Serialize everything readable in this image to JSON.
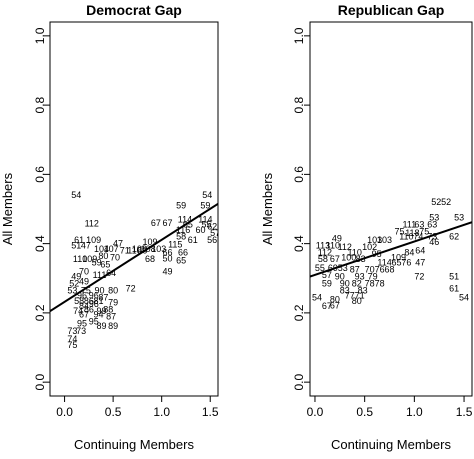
{
  "chart_data": [
    {
      "type": "scatter",
      "title": "Democrat Gap",
      "xlabel": "Continuing Members",
      "ylabel": "All Members",
      "xlim": [
        -0.15,
        1.58
      ],
      "ylim": [
        -0.04,
        1.04
      ],
      "xticks": [
        "0.0",
        "0.5",
        "1.0",
        "1.5"
      ],
      "yticks": [
        "0.0",
        "0.2",
        "0.4",
        "0.6",
        "0.8",
        "1.0"
      ],
      "fit_line": {
        "x": [
          -0.15,
          1.58
        ],
        "y": [
          0.205,
          0.515
        ]
      },
      "points": [
        {
          "x": 0.12,
          "y": 0.54,
          "label": "54"
        },
        {
          "x": 0.28,
          "y": 0.458,
          "label": "112"
        },
        {
          "x": 0.15,
          "y": 0.41,
          "label": "61"
        },
        {
          "x": 0.3,
          "y": 0.41,
          "label": "109"
        },
        {
          "x": 0.12,
          "y": 0.395,
          "label": "51"
        },
        {
          "x": 0.22,
          "y": 0.395,
          "label": "47"
        },
        {
          "x": 0.55,
          "y": 0.4,
          "label": "47"
        },
        {
          "x": 0.38,
          "y": 0.385,
          "label": "104"
        },
        {
          "x": 0.48,
          "y": 0.385,
          "label": "107"
        },
        {
          "x": 0.62,
          "y": 0.38,
          "label": "71"
        },
        {
          "x": 0.72,
          "y": 0.38,
          "label": "110"
        },
        {
          "x": 0.16,
          "y": 0.355,
          "label": "110"
        },
        {
          "x": 0.26,
          "y": 0.355,
          "label": "109"
        },
        {
          "x": 0.4,
          "y": 0.365,
          "label": "80"
        },
        {
          "x": 0.52,
          "y": 0.36,
          "label": "70"
        },
        {
          "x": 0.33,
          "y": 0.345,
          "label": "59"
        },
        {
          "x": 0.42,
          "y": 0.34,
          "label": "65"
        },
        {
          "x": 0.2,
          "y": 0.32,
          "label": "70"
        },
        {
          "x": 0.12,
          "y": 0.305,
          "label": "49"
        },
        {
          "x": 0.36,
          "y": 0.31,
          "label": "111"
        },
        {
          "x": 0.48,
          "y": 0.315,
          "label": "64"
        },
        {
          "x": 0.2,
          "y": 0.29,
          "label": "49"
        },
        {
          "x": 0.1,
          "y": 0.285,
          "label": "52"
        },
        {
          "x": 0.08,
          "y": 0.265,
          "label": "53"
        },
        {
          "x": 0.22,
          "y": 0.265,
          "label": "75"
        },
        {
          "x": 0.36,
          "y": 0.265,
          "label": "90"
        },
        {
          "x": 0.5,
          "y": 0.265,
          "label": "80"
        },
        {
          "x": 0.68,
          "y": 0.27,
          "label": "72"
        },
        {
          "x": 0.18,
          "y": 0.25,
          "label": "96"
        },
        {
          "x": 0.3,
          "y": 0.25,
          "label": "96"
        },
        {
          "x": 0.4,
          "y": 0.245,
          "label": "87"
        },
        {
          "x": 0.15,
          "y": 0.235,
          "label": "58"
        },
        {
          "x": 0.25,
          "y": 0.235,
          "label": "86"
        },
        {
          "x": 0.35,
          "y": 0.235,
          "label": "81"
        },
        {
          "x": 0.2,
          "y": 0.22,
          "label": "84"
        },
        {
          "x": 0.3,
          "y": 0.225,
          "label": "96"
        },
        {
          "x": 0.5,
          "y": 0.23,
          "label": "79"
        },
        {
          "x": 0.14,
          "y": 0.205,
          "label": "74"
        },
        {
          "x": 0.25,
          "y": 0.21,
          "label": "86"
        },
        {
          "x": 0.38,
          "y": 0.205,
          "label": "99"
        },
        {
          "x": 0.45,
          "y": 0.21,
          "label": "88"
        },
        {
          "x": 0.2,
          "y": 0.195,
          "label": "67"
        },
        {
          "x": 0.35,
          "y": 0.195,
          "label": "94"
        },
        {
          "x": 0.48,
          "y": 0.19,
          "label": "87"
        },
        {
          "x": 0.18,
          "y": 0.17,
          "label": "95"
        },
        {
          "x": 0.3,
          "y": 0.175,
          "label": "95"
        },
        {
          "x": 0.38,
          "y": 0.162,
          "label": "89"
        },
        {
          "x": 0.5,
          "y": 0.162,
          "label": "89"
        },
        {
          "x": 0.08,
          "y": 0.148,
          "label": "73"
        },
        {
          "x": 0.17,
          "y": 0.148,
          "label": "73"
        },
        {
          "x": 0.08,
          "y": 0.125,
          "label": "74"
        },
        {
          "x": 0.08,
          "y": 0.107,
          "label": "75"
        },
        {
          "x": 0.94,
          "y": 0.46,
          "label": "67"
        },
        {
          "x": 1.06,
          "y": 0.46,
          "label": "67"
        },
        {
          "x": 1.2,
          "y": 0.51,
          "label": "59"
        },
        {
          "x": 1.47,
          "y": 0.54,
          "label": "54"
        },
        {
          "x": 1.45,
          "y": 0.51,
          "label": "59"
        },
        {
          "x": 1.24,
          "y": 0.47,
          "label": "114"
        },
        {
          "x": 1.45,
          "y": 0.47,
          "label": "114"
        },
        {
          "x": 1.27,
          "y": 0.455,
          "label": "65"
        },
        {
          "x": 1.46,
          "y": 0.455,
          "label": "55"
        },
        {
          "x": 1.52,
          "y": 0.45,
          "label": "62"
        },
        {
          "x": 1.22,
          "y": 0.44,
          "label": "116"
        },
        {
          "x": 1.4,
          "y": 0.44,
          "label": "60"
        },
        {
          "x": 1.2,
          "y": 0.42,
          "label": "58"
        },
        {
          "x": 1.55,
          "y": 0.43,
          "label": "57"
        },
        {
          "x": 0.88,
          "y": 0.405,
          "label": "109"
        },
        {
          "x": 1.32,
          "y": 0.41,
          "label": "61"
        },
        {
          "x": 1.14,
          "y": 0.398,
          "label": "115"
        },
        {
          "x": 0.77,
          "y": 0.385,
          "label": "106"
        },
        {
          "x": 0.86,
          "y": 0.385,
          "label": "108"
        },
        {
          "x": 0.97,
          "y": 0.385,
          "label": "103"
        },
        {
          "x": 0.8,
          "y": 0.38,
          "label": "66"
        },
        {
          "x": 1.06,
          "y": 0.375,
          "label": "66"
        },
        {
          "x": 1.22,
          "y": 0.375,
          "label": "66"
        },
        {
          "x": 1.52,
          "y": 0.41,
          "label": "56"
        },
        {
          "x": 0.88,
          "y": 0.355,
          "label": "68"
        },
        {
          "x": 1.06,
          "y": 0.357,
          "label": "50"
        },
        {
          "x": 1.2,
          "y": 0.352,
          "label": "65"
        },
        {
          "x": 1.06,
          "y": 0.32,
          "label": "49"
        }
      ]
    },
    {
      "type": "scatter",
      "title": "Republican Gap",
      "xlabel": "Continuing Members",
      "ylabel": "All Members",
      "xlim": [
        -0.05,
        1.58
      ],
      "ylim": [
        -0.04,
        1.04
      ],
      "xticks": [
        "0.0",
        "0.5",
        "1.0",
        "1.5"
      ],
      "yticks": [
        "0.0",
        "0.2",
        "0.4",
        "0.6",
        "0.8",
        "1.0"
      ],
      "fit_line": {
        "x": [
          -0.05,
          1.58
        ],
        "y": [
          0.305,
          0.462
        ]
      },
      "points": [
        {
          "x": 1.22,
          "y": 0.52,
          "label": "52"
        },
        {
          "x": 1.32,
          "y": 0.52,
          "label": "52"
        },
        {
          "x": 1.2,
          "y": 0.475,
          "label": "53"
        },
        {
          "x": 1.45,
          "y": 0.475,
          "label": "53"
        },
        {
          "x": 0.95,
          "y": 0.455,
          "label": "111"
        },
        {
          "x": 1.05,
          "y": 0.455,
          "label": "63"
        },
        {
          "x": 1.18,
          "y": 0.455,
          "label": "63"
        },
        {
          "x": 0.85,
          "y": 0.435,
          "label": "75"
        },
        {
          "x": 0.98,
          "y": 0.43,
          "label": "118"
        },
        {
          "x": 1.1,
          "y": 0.435,
          "label": "75"
        },
        {
          "x": 0.92,
          "y": 0.42,
          "label": "110"
        },
        {
          "x": 1.04,
          "y": 0.42,
          "label": "74"
        },
        {
          "x": 1.18,
          "y": 0.42,
          "label": "73"
        },
        {
          "x": 1.4,
          "y": 0.42,
          "label": "62"
        },
        {
          "x": 1.2,
          "y": 0.405,
          "label": "46"
        },
        {
          "x": 0.22,
          "y": 0.415,
          "label": "49"
        },
        {
          "x": 0.6,
          "y": 0.41,
          "label": "103"
        },
        {
          "x": 0.7,
          "y": 0.41,
          "label": "103"
        },
        {
          "x": 0.08,
          "y": 0.395,
          "label": "113"
        },
        {
          "x": 0.18,
          "y": 0.395,
          "label": "110"
        },
        {
          "x": 0.3,
          "y": 0.39,
          "label": "112"
        },
        {
          "x": 0.55,
          "y": 0.39,
          "label": "102"
        },
        {
          "x": 0.1,
          "y": 0.375,
          "label": "112"
        },
        {
          "x": 0.4,
          "y": 0.375,
          "label": "110"
        },
        {
          "x": 0.62,
          "y": 0.37,
          "label": "95"
        },
        {
          "x": 0.95,
          "y": 0.375,
          "label": "84"
        },
        {
          "x": 1.06,
          "y": 0.38,
          "label": "64"
        },
        {
          "x": 0.08,
          "y": 0.355,
          "label": "58"
        },
        {
          "x": 0.2,
          "y": 0.355,
          "label": "67"
        },
        {
          "x": 0.34,
          "y": 0.36,
          "label": "100"
        },
        {
          "x": 0.46,
          "y": 0.355,
          "label": "83"
        },
        {
          "x": 0.84,
          "y": 0.36,
          "label": "109"
        },
        {
          "x": 0.7,
          "y": 0.345,
          "label": "114"
        },
        {
          "x": 0.82,
          "y": 0.345,
          "label": "65"
        },
        {
          "x": 0.92,
          "y": 0.345,
          "label": "76"
        },
        {
          "x": 1.06,
          "y": 0.345,
          "label": "47"
        },
        {
          "x": 0.05,
          "y": 0.33,
          "label": "55"
        },
        {
          "x": 0.18,
          "y": 0.33,
          "label": "69"
        },
        {
          "x": 0.28,
          "y": 0.33,
          "label": "53"
        },
        {
          "x": 0.4,
          "y": 0.325,
          "label": "87"
        },
        {
          "x": 0.55,
          "y": 0.325,
          "label": "70"
        },
        {
          "x": 0.65,
          "y": 0.325,
          "label": "76"
        },
        {
          "x": 0.75,
          "y": 0.325,
          "label": "68"
        },
        {
          "x": 0.12,
          "y": 0.31,
          "label": "57"
        },
        {
          "x": 0.25,
          "y": 0.305,
          "label": "90"
        },
        {
          "x": 0.45,
          "y": 0.305,
          "label": "93"
        },
        {
          "x": 0.58,
          "y": 0.305,
          "label": "79"
        },
        {
          "x": 1.05,
          "y": 0.305,
          "label": "72"
        },
        {
          "x": 1.4,
          "y": 0.305,
          "label": "51"
        },
        {
          "x": 0.12,
          "y": 0.285,
          "label": "59"
        },
        {
          "x": 0.3,
          "y": 0.285,
          "label": "90"
        },
        {
          "x": 0.42,
          "y": 0.285,
          "label": "82"
        },
        {
          "x": 0.55,
          "y": 0.285,
          "label": "78"
        },
        {
          "x": 0.65,
          "y": 0.285,
          "label": "78"
        },
        {
          "x": 1.4,
          "y": 0.27,
          "label": "61"
        },
        {
          "x": 0.3,
          "y": 0.265,
          "label": "83"
        },
        {
          "x": 0.48,
          "y": 0.265,
          "label": "83"
        },
        {
          "x": 0.35,
          "y": 0.25,
          "label": "77"
        },
        {
          "x": 0.45,
          "y": 0.25,
          "label": "71"
        },
        {
          "x": 0.02,
          "y": 0.245,
          "label": "54"
        },
        {
          "x": 0.2,
          "y": 0.238,
          "label": "80"
        },
        {
          "x": 0.42,
          "y": 0.235,
          "label": "80"
        },
        {
          "x": 0.12,
          "y": 0.22,
          "label": "67"
        },
        {
          "x": 0.2,
          "y": 0.222,
          "label": "67"
        },
        {
          "x": 1.5,
          "y": 0.245,
          "label": "54"
        }
      ]
    }
  ]
}
